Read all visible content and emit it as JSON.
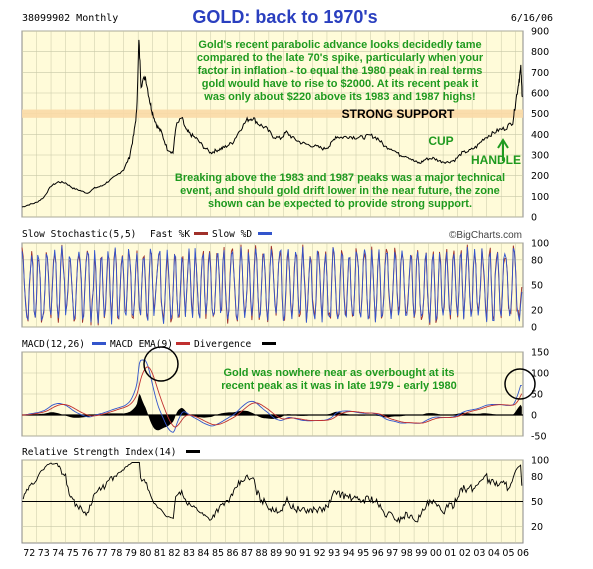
{
  "header": {
    "symbol_label": "38099902 Monthly",
    "title": "GOLD: back to 1970's",
    "date": "6/16/06"
  },
  "colors": {
    "panel_bg": "#fffbd9",
    "grid": "#c8c8a8",
    "price_line": "#000000",
    "support_band": "#f9d9a6",
    "annotation_green": "#1f9a1f",
    "title_blue": "#2a3fbf",
    "stoch_fast": "#a0302a",
    "stoch_slow": "#3355cc",
    "macd_line": "#3355cc",
    "macd_ema": "#c03030"
  },
  "chart_data": [
    {
      "type": "line",
      "name": "price",
      "ylim": [
        0,
        900
      ],
      "yticks": [
        0,
        100,
        200,
        300,
        400,
        500,
        600,
        700,
        800,
        900
      ],
      "x_range": [
        1972,
        2006.5
      ],
      "x": [
        1972,
        1972.5,
        1973,
        1973.5,
        1974,
        1974.5,
        1975,
        1975.5,
        1976,
        1976.5,
        1977,
        1977.5,
        1978,
        1978.5,
        1979,
        1979.4,
        1979.7,
        1979.9,
        1980.05,
        1980.2,
        1980.5,
        1980.8,
        1981,
        1981.3,
        1981.6,
        1982,
        1982.4,
        1982.6,
        1983,
        1983.3,
        1983.6,
        1984,
        1984.5,
        1985,
        1985.3,
        1985.7,
        1986,
        1986.5,
        1987,
        1987.5,
        1987.9,
        1988.3,
        1988.8,
        1989.3,
        1989.8,
        1990.2,
        1990.7,
        1991.2,
        1991.7,
        1992.3,
        1992.8,
        1993.2,
        1993.6,
        1994,
        1994.5,
        1995,
        1995.5,
        1996,
        1996.5,
        1997,
        1997.5,
        1998,
        1998.5,
        1999,
        1999.4,
        1999.8,
        2000.3,
        2000.8,
        2001.3,
        2001.8,
        2002.3,
        2002.8,
        2003.3,
        2003.8,
        2004.3,
        2004.8,
        2005.3,
        2005.8,
        2006,
        2006.2,
        2006.35,
        2006.45
      ],
      "y": [
        48,
        60,
        70,
        95,
        150,
        170,
        165,
        140,
        128,
        115,
        140,
        150,
        175,
        200,
        230,
        290,
        400,
        510,
        850,
        640,
        680,
        560,
        500,
        440,
        410,
        330,
        310,
        440,
        480,
        420,
        400,
        380,
        340,
        310,
        320,
        330,
        340,
        360,
        420,
        470,
        480,
        450,
        430,
        390,
        380,
        410,
        380,
        360,
        350,
        340,
        330,
        345,
        390,
        385,
        390,
        385,
        385,
        395,
        380,
        340,
        330,
        300,
        295,
        270,
        260,
        280,
        285,
        270,
        265,
        275,
        310,
        320,
        340,
        380,
        400,
        420,
        430,
        460,
        560,
        650,
        720,
        580
      ],
      "support_band": [
        480,
        520
      ],
      "annotations": [
        "Gold's recent parabolic advance looks decidedly tame",
        "compared to the late 70's spike, particularly when your",
        "factor in inflation - to equal the 1980 peak in real terms",
        "gold would have to rise to $2000. At its recent peak it",
        "was only about $220 above its 1983 and 1987 highs!"
      ],
      "label_support": "STRONG SUPPORT",
      "label_cup": "CUP",
      "label_handle": "HANDLE",
      "note_lines": [
        "Breaking above the 1983 and 1987 peaks was a major technical",
        "event, and should gold drift lower in the near future, the zone",
        "shown can be expected to provide strong support."
      ]
    },
    {
      "type": "line",
      "name": "stochastic",
      "title": "Slow Stochastic(5,5)",
      "legend": [
        "Fast %K",
        "Slow %D"
      ],
      "ylim": [
        0,
        100
      ],
      "yticks": [
        0,
        20,
        50,
        80,
        100
      ],
      "watermark": "©BigCharts.com"
    },
    {
      "type": "line",
      "name": "macd",
      "title": "MACD(12,26)",
      "legend": [
        "MACD EMA(9)",
        "Divergence"
      ],
      "ylim": [
        -50,
        150
      ],
      "yticks": [
        -50,
        0,
        50,
        100,
        150
      ],
      "note_lines": [
        "Gold was nowhere near as overbought at its",
        "recent peak as it was in late 1979 - early 1980"
      ]
    },
    {
      "type": "line",
      "name": "rsi",
      "title": "Relative Strength Index(14)",
      "ylim": [
        0,
        100
      ],
      "yticks": [
        20,
        50,
        80,
        100
      ],
      "x_tick_labels": [
        "72",
        "73",
        "74",
        "75",
        "76",
        "77",
        "78",
        "79",
        "80",
        "81",
        "82",
        "83",
        "84",
        "85",
        "86",
        "87",
        "88",
        "89",
        "90",
        "91",
        "92",
        "93",
        "94",
        "95",
        "96",
        "97",
        "98",
        "99",
        "00",
        "01",
        "02",
        "03",
        "04",
        "05",
        "06"
      ]
    }
  ]
}
